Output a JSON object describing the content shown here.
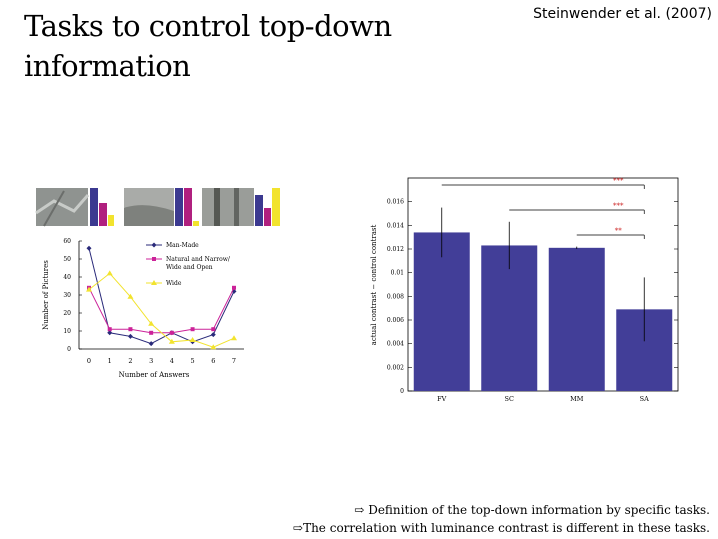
{
  "slide": {
    "title": "Tasks to control top-down information",
    "citation": "Steinwender et al. (2007)"
  },
  "footer": {
    "arrow": "⇨",
    "line1": "Definition of the top-down information by specific tasks.",
    "line2": "The correlation with luminance contrast is different in these tasks."
  },
  "left_chart_labels": {
    "ylabel": "Number of Pictures",
    "xlabel": "Number of Answers"
  },
  "chart_data": [
    {
      "type": "line",
      "ylabel": "Number of Pictures",
      "xlabel": "Number of Answers",
      "x": [
        0,
        1,
        2,
        3,
        4,
        5,
        6,
        7
      ],
      "ylim": [
        0,
        60
      ],
      "yticks": [
        0,
        10,
        20,
        30,
        40,
        50,
        60
      ],
      "series": [
        {
          "name": "Man-Made",
          "color": "#2a2a7a",
          "marker": "diamond",
          "values": [
            56,
            9,
            7,
            3,
            9,
            4,
            8,
            32
          ]
        },
        {
          "name": "Natural and Narrow/ Wide and Open",
          "color": "#cc2299",
          "marker": "square",
          "values": [
            34,
            11,
            11,
            9,
            9,
            11,
            11,
            34
          ]
        },
        {
          "name": "Wide",
          "color": "#ffee33",
          "marker": "triangle",
          "values": [
            33,
            42,
            29,
            14,
            4,
            5,
            1,
            6
          ]
        }
      ]
    },
    {
      "type": "bar",
      "ylabel": "actual contrast − control contrast",
      "categories": [
        "FV",
        "SC",
        "MM",
        "SA"
      ],
      "values": [
        0.0134,
        0.0123,
        0.0121,
        0.0069
      ],
      "errors": [
        0.0021,
        0.002,
        0.0001,
        0.0027
      ],
      "ylim": [
        0,
        0.018
      ],
      "yticks": [
        0,
        0.002,
        0.004,
        0.006,
        0.008,
        0.01,
        0.012,
        0.014,
        0.016
      ],
      "bar_color": "#423e98",
      "significance": [
        {
          "from": "FV",
          "to": "SA",
          "label": "***"
        },
        {
          "from": "SC",
          "to": "SA",
          "label": "***"
        },
        {
          "from": "MM",
          "to": "SA",
          "label": "**"
        }
      ]
    }
  ]
}
